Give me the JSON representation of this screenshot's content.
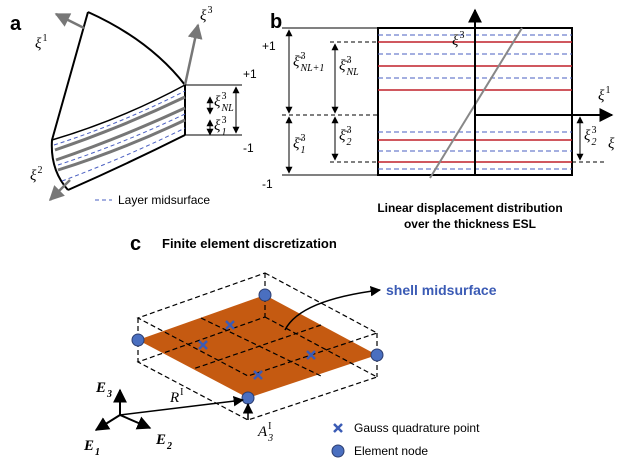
{
  "panel_a": {
    "label": "a",
    "xi1": {
      "base": "ξ",
      "sup": "1"
    },
    "xi3": {
      "base": "ξ",
      "sup": "3"
    },
    "xi2": {
      "base": "ξ",
      "sup": "2"
    },
    "plus_one": "+1",
    "minus_one": "-1",
    "xi_nl": {
      "base": "ξ",
      "sup": "3",
      "sub": "NL"
    },
    "xi_1": {
      "base": "ξ",
      "sup": "3",
      "sub": "1"
    },
    "legend": "Layer midsurface"
  },
  "panel_b": {
    "label": "b",
    "xi3": {
      "base": "ξ",
      "sup": "3"
    },
    "xi1": {
      "base": "ξ",
      "sup": "1"
    },
    "plus_one": "+1",
    "minus_one": "-1",
    "xi_nl1": {
      "base": "ξ̄",
      "sup": "3",
      "sub": "NL+1"
    },
    "xi_nl": {
      "base": "ξ̄",
      "sup": "3",
      "sub": "NL"
    },
    "xi_1": {
      "base": "ξ̄",
      "sup": "3",
      "sub": "1"
    },
    "xi_2": {
      "base": "ξ̄",
      "sup": "3",
      "sub": "2"
    },
    "xi_2_right": {
      "base": "ξ",
      "sup": "3",
      "sub": "2"
    },
    "xi_edge": {
      "base": "ξ"
    },
    "caption": [
      "Linear displacement distribution",
      "over the thickness  ESL"
    ]
  },
  "panel_c": {
    "label": "c",
    "title": "Finite element discretization",
    "shell_midsurface": "shell midsurface",
    "e3": {
      "base": "E",
      "sub": "3"
    },
    "e2": {
      "base": "E",
      "sub": "2"
    },
    "e1": {
      "base": "E",
      "sub": "1"
    },
    "r": {
      "base": "R",
      "sup": "I"
    },
    "a3": {
      "base": "A",
      "sup": "I",
      "sub": "3"
    },
    "gauss_legend": "Gauss quadrature point",
    "node_legend": "Element node"
  }
}
